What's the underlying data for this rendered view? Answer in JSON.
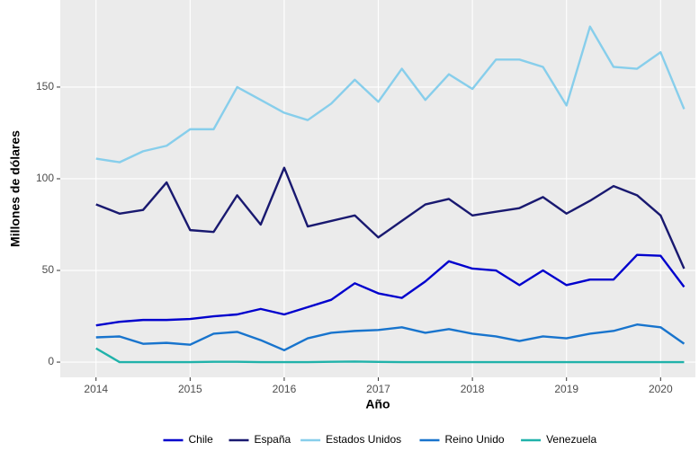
{
  "chart_data": {
    "type": "line",
    "x_label": "Año",
    "y_label": "Millones de dólares",
    "x": [
      2014,
      2014.25,
      2014.5,
      2014.75,
      2015,
      2015.25,
      2015.5,
      2015.75,
      2016,
      2016.25,
      2016.5,
      2016.75,
      2017,
      2017.25,
      2017.5,
      2017.75,
      2018,
      2018.25,
      2018.5,
      2018.75,
      2019,
      2019.25,
      2019.5,
      2019.75,
      2020,
      2020.25
    ],
    "series": [
      {
        "name": "Chile",
        "color": "#0000cd",
        "values": [
          20,
          22,
          23,
          23,
          23.5,
          25,
          26,
          29,
          26,
          30,
          34,
          43,
          37.5,
          35,
          44,
          55,
          51,
          50,
          42,
          50,
          42,
          45,
          45,
          58.5,
          58,
          41
        ]
      },
      {
        "name": "España",
        "color": "#191970",
        "values": [
          86,
          81,
          83,
          98,
          72,
          71,
          91,
          75,
          106,
          74,
          77,
          80,
          68,
          77,
          86,
          89,
          80,
          82,
          84,
          90,
          81,
          88,
          96,
          91,
          80,
          51
        ]
      },
      {
        "name": "Estados Unidos",
        "color": "#87ceeb",
        "values": [
          111,
          109,
          115,
          118,
          127,
          127,
          150,
          143,
          136,
          132,
          141,
          154,
          142,
          160,
          143,
          157,
          149,
          165,
          165,
          161,
          140,
          183,
          161,
          160,
          169,
          138
        ]
      },
      {
        "name": "Reino Unido",
        "color": "#1874cd",
        "values": [
          13.5,
          14,
          10,
          10.5,
          9.5,
          15.5,
          16.5,
          12,
          6.5,
          13,
          16,
          17,
          17.5,
          19,
          16,
          18,
          15.5,
          14,
          11.5,
          14,
          13,
          15.5,
          17,
          20.5,
          19,
          10
        ]
      },
      {
        "name": "Venezuela",
        "color": "#20b2aa",
        "values": [
          7.5,
          0,
          0,
          0,
          0,
          0.2,
          0.2,
          0,
          0,
          0,
          0.2,
          0.3,
          0.1,
          0,
          0,
          0,
          0,
          0,
          0,
          0,
          0,
          0,
          0,
          0,
          0,
          0
        ]
      }
    ],
    "xlim": [
      2013.62,
      2020.37
    ],
    "xticks": [
      2014,
      2015,
      2016,
      2017,
      2018,
      2019,
      2020
    ],
    "ylim": [
      -8.3,
      197.5
    ],
    "yticks": [
      0,
      50,
      100,
      150
    ],
    "grid": true,
    "legend": "bottom"
  }
}
